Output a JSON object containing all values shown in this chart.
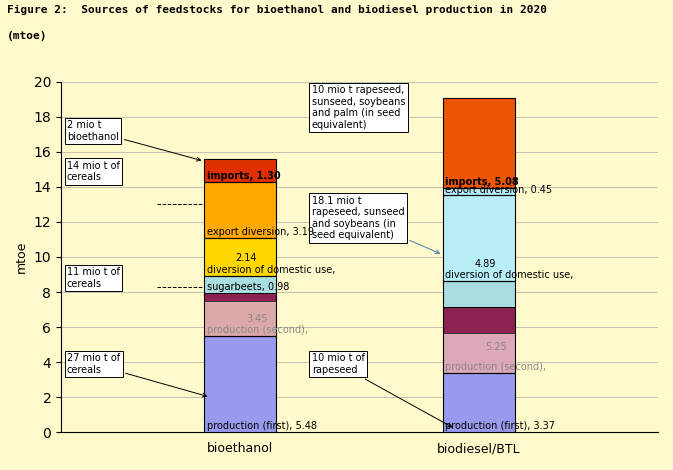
{
  "title_line1": "Figure 2:  Sources of feedstocks for bioethanol and biodiesel production in 2020",
  "title_line2": "(mtoe)",
  "ylabel": "mtoe",
  "xlabels": [
    "bioethanol",
    "biodiesel/BTL"
  ],
  "ylim": [
    0,
    20
  ],
  "yticks": [
    0,
    2,
    4,
    6,
    8,
    10,
    12,
    14,
    16,
    18,
    20
  ],
  "bg_color": "#FFFACC",
  "bar_x_bio": 1.5,
  "bar_x_btl": 3.5,
  "bar_width": 0.6,
  "xmin": 0.0,
  "xmax": 5.0,
  "bioethanol_layers": [
    {
      "value": 5.48,
      "color": "#9999EE",
      "name": "prod_first"
    },
    {
      "value": 1.99,
      "color": "#DDA8A8",
      "name": "prod_second_pink"
    },
    {
      "value": 0.48,
      "color": "#8B2252",
      "name": "prod_second_maroon"
    },
    {
      "value": 0.98,
      "color": "#AADDE0",
      "name": "prod_second_sugarbeets"
    },
    {
      "value": 2.14,
      "color": "#FFD700",
      "name": "diversion_domestic"
    },
    {
      "value": 3.19,
      "color": "#FFA800",
      "name": "export_diversion"
    },
    {
      "value": 1.3,
      "color": "#E03000",
      "name": "imports"
    }
  ],
  "biodiesel_layers": [
    {
      "value": 3.37,
      "color": "#9999EE",
      "name": "prod_first"
    },
    {
      "value": 2.28,
      "color": "#DDA8B8",
      "name": "prod_second_pink"
    },
    {
      "value": 1.47,
      "color": "#8B2252",
      "name": "prod_second_maroon"
    },
    {
      "value": 1.5,
      "color": "#AADDE0",
      "name": "prod_second_cyan"
    },
    {
      "value": 4.89,
      "color": "#B8EEF8",
      "name": "diversion_domestic"
    },
    {
      "value": 0.45,
      "color": "#B8EEF8",
      "name": "export_diversion"
    },
    {
      "value": 5.08,
      "color": "#EE5500",
      "name": "imports"
    }
  ],
  "bio_second_prod_total": 3.45,
  "btl_second_prod_total": 5.25,
  "label_fontsize": 7,
  "annot_fontsize": 7
}
